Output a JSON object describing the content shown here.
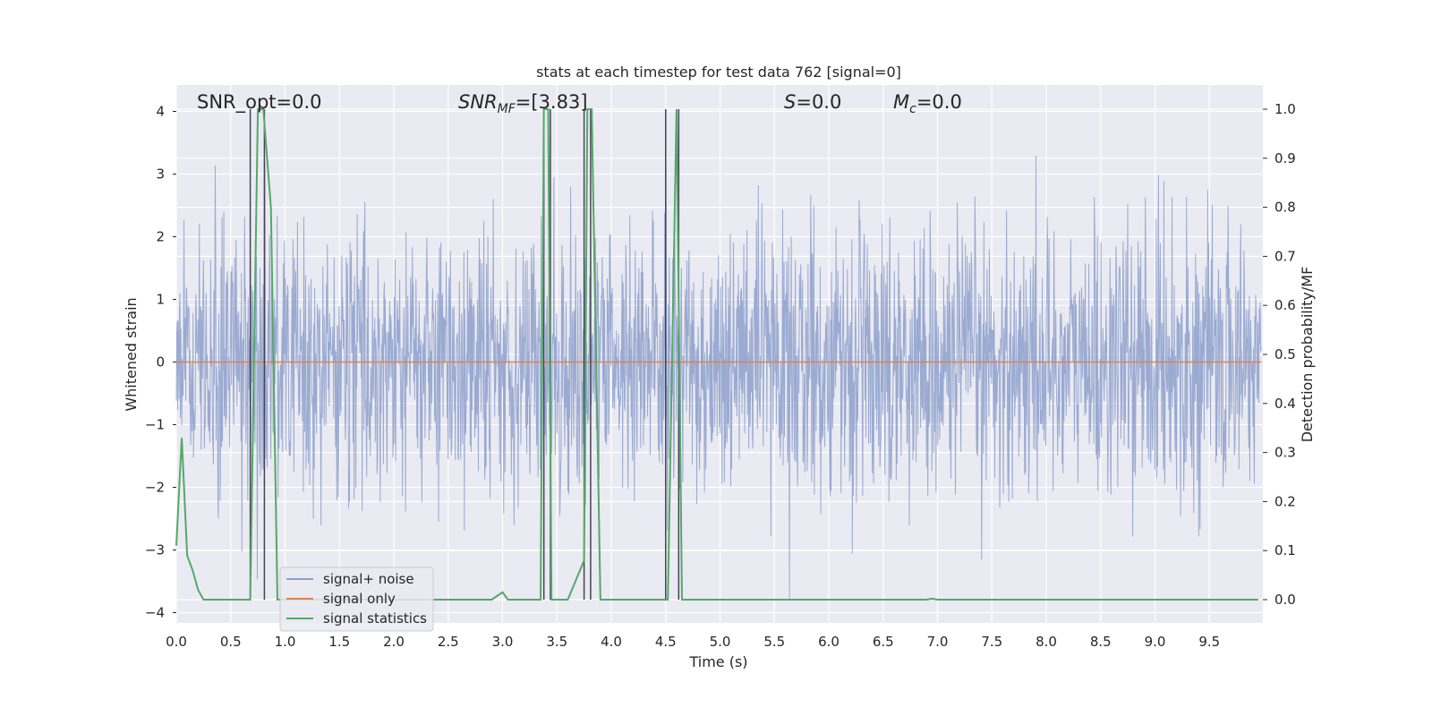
{
  "chart_data": {
    "type": "line",
    "title": "stats at each timestep for test data 762 [signal=0]",
    "xlabel": "Time (s)",
    "ylabel_left": "Whitened strain",
    "ylabel_right": "Detection probability/MF",
    "xlim": [
      0,
      10
    ],
    "ylim_left": [
      -4.3,
      4.4
    ],
    "ylim_right": [
      -0.05,
      1.05
    ],
    "grid": true,
    "x_ticks": [
      "0.0",
      "0.5",
      "1.0",
      "1.5",
      "2.0",
      "2.5",
      "3.0",
      "3.5",
      "4.0",
      "4.5",
      "5.0",
      "5.5",
      "6.0",
      "6.5",
      "7.0",
      "7.5",
      "8.0",
      "8.5",
      "9.0",
      "9.5"
    ],
    "y_left_ticks": [
      "4",
      "3",
      "2",
      "1",
      "0",
      "−1",
      "−2",
      "−3",
      "−4"
    ],
    "y_right_ticks": [
      "1.0",
      "0.9",
      "0.8",
      "0.7",
      "0.6",
      "0.5",
      "0.4",
      "0.3",
      "0.2",
      "0.1",
      "0.0"
    ],
    "annotations": {
      "snr_opt": "SNR_opt=0.0",
      "snr_mf_base": "SNR",
      "snr_mf_sub": "MF",
      "snr_mf_value": "=[3.83]",
      "s_symbol": "S",
      "s_value": "=0.0",
      "mc_base": "M",
      "mc_sub": "c",
      "mc_value": "=0.0"
    },
    "legend": {
      "placement": "lower-left",
      "entries": [
        "signal+ noise",
        "signal only",
        "signal statistics"
      ]
    },
    "series": [
      {
        "name": "signal+ noise",
        "axis": "left",
        "color": "#8c9fcb",
        "description_values": {
          "typical_range": [
            -2.5,
            2.5
          ],
          "max": 4.0,
          "min": -3.8
        }
      },
      {
        "name": "signal only",
        "axis": "left",
        "color": "#dd8452",
        "values_constant": 0.0
      },
      {
        "name": "signal statistics",
        "axis": "right",
        "color": "#55a868",
        "x": [
          0.0,
          0.05,
          0.1,
          0.15,
          0.2,
          0.25,
          0.3,
          0.35,
          0.4,
          0.5,
          0.6,
          0.67,
          0.68,
          0.75,
          0.8,
          0.87,
          0.93,
          1.0,
          2.8,
          2.9,
          3.0,
          3.05,
          3.1,
          3.2,
          3.35,
          3.38,
          3.42,
          3.45,
          3.48,
          3.6,
          3.75,
          3.78,
          3.82,
          3.9,
          3.95,
          4.5,
          4.52,
          4.6,
          4.65,
          4.7,
          5.0,
          6.9,
          6.95,
          7.0,
          9.95
        ],
        "y": [
          0.11,
          0.33,
          0.09,
          0.06,
          0.02,
          0.0,
          0.0,
          0.0,
          0.0,
          0.0,
          0.0,
          0.0,
          0.0,
          1.0,
          1.0,
          0.8,
          0.0,
          0.0,
          0.0,
          0.0,
          0.015,
          0.0,
          0.0,
          0.0,
          0.0,
          1.0,
          1.0,
          0.0,
          0.0,
          0.0,
          0.08,
          1.0,
          1.0,
          0.0,
          0.0,
          0.0,
          0.0,
          1.0,
          0.0,
          0.0,
          0.0,
          0.0,
          0.002,
          0.0,
          0.0
        ]
      }
    ],
    "vertical_markers_x": [
      0.68,
      0.81,
      3.38,
      3.44,
      3.75,
      3.81,
      4.5,
      4.62
    ]
  }
}
